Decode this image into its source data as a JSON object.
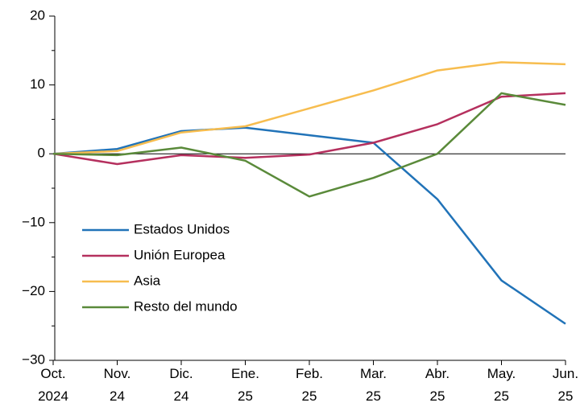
{
  "chart_data": {
    "type": "line",
    "categories": [
      "Oct. 2024",
      "Nov. 24",
      "Dic. 24",
      "Ene. 25",
      "Feb. 25",
      "Mar. 25",
      "Abr. 25",
      "May. 25",
      "Jun. 25"
    ],
    "series": [
      {
        "name": "Estados Unidos",
        "color": "#2173b8",
        "values": [
          0,
          0.7,
          3.3,
          3.8,
          2.7,
          1.6,
          -6.6,
          -18.4,
          -24.7
        ]
      },
      {
        "name": "Unión Europea",
        "color": "#b5305e",
        "values": [
          0,
          -1.5,
          -0.2,
          -0.6,
          -0.1,
          1.6,
          4.3,
          8.3,
          8.8
        ]
      },
      {
        "name": "Asia",
        "color": "#f7bd4f",
        "values": [
          0,
          0.4,
          3.1,
          4.0,
          6.6,
          9.2,
          12.1,
          13.3,
          13.0
        ]
      },
      {
        "name": "Resto del mundo",
        "color": "#5a8a3a",
        "values": [
          0,
          -0.2,
          0.9,
          -1.0,
          -6.2,
          -3.5,
          0,
          8.8,
          7.1
        ]
      }
    ],
    "ylim": [
      -30,
      20
    ],
    "yticks": [
      {
        "value": -30,
        "label": "−30"
      },
      {
        "value": -20,
        "label": "−20"
      },
      {
        "value": -10,
        "label": "−10"
      },
      0,
      10,
      20
    ],
    "minor_yticks": [
      -25,
      -15,
      -5,
      5,
      15
    ],
    "legend": "lower left"
  }
}
